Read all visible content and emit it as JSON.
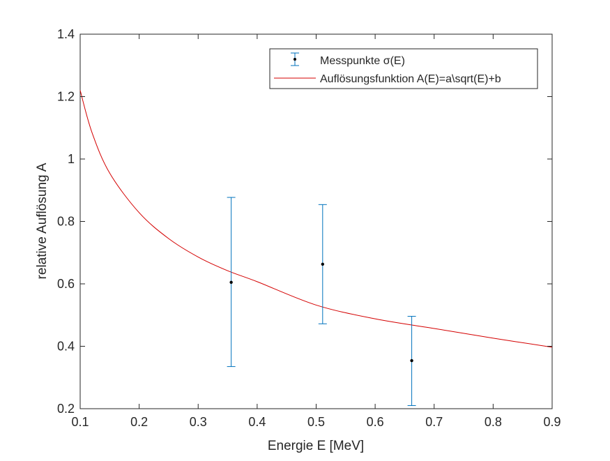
{
  "chart_data": {
    "type": "scatter",
    "xlabel": "Energie E [MeV]",
    "ylabel": "relative Auflösung A",
    "xlim": [
      0.1,
      0.9
    ],
    "ylim": [
      0.2,
      1.4
    ],
    "xticks": [
      0.1,
      0.2,
      0.3,
      0.4,
      0.5,
      0.6,
      0.7,
      0.8,
      0.9
    ],
    "xtick_labels": [
      "0.1",
      "0.2",
      "0.3",
      "0.4",
      "0.5",
      "0.6",
      "0.7",
      "0.8",
      "0.9"
    ],
    "yticks": [
      0.2,
      0.4,
      0.6,
      0.8,
      1.0,
      1.2,
      1.4
    ],
    "ytick_labels": [
      "0.2",
      "0.4",
      "0.6",
      "0.8",
      "1",
      "1.2",
      "1.4"
    ],
    "grid": false,
    "legend_position": "top-right",
    "series": [
      {
        "name": "Messpunkte σ(E)",
        "kind": "errorbar",
        "color": "#0072BD",
        "marker_color": "#000000",
        "x": [
          0.356,
          0.511,
          0.662
        ],
        "y": [
          0.605,
          0.663,
          0.354
        ],
        "y_lower": [
          0.335,
          0.472,
          0.21
        ],
        "y_upper": [
          0.877,
          0.854,
          0.496
        ]
      },
      {
        "name": "Auflösungsfunktion A(E)=a\\sqrt(E)+b",
        "kind": "line",
        "color": "#D40000",
        "x": [
          0.1,
          0.12,
          0.15,
          0.2,
          0.25,
          0.3,
          0.35,
          0.4,
          0.5,
          0.6,
          0.7,
          0.8,
          0.9
        ],
        "y": [
          1.22,
          1.085,
          0.955,
          0.828,
          0.745,
          0.686,
          0.642,
          0.607,
          0.532,
          0.488,
          0.457,
          0.426,
          0.397
        ]
      }
    ]
  }
}
